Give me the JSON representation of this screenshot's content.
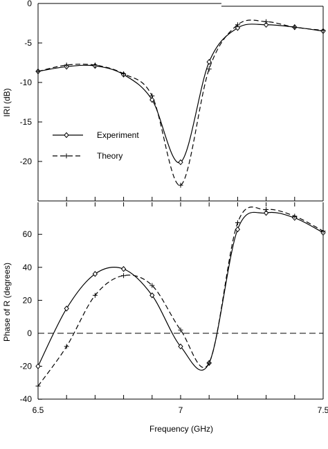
{
  "chart_data": [
    {
      "type": "line",
      "xlim": [
        6.5,
        7.5
      ],
      "ylim": [
        -25,
        0
      ],
      "yticks": [
        0,
        -5,
        -10,
        -15,
        -20
      ],
      "xticks": [
        6.5,
        6.6,
        6.7,
        6.8,
        6.9,
        7.0,
        7.1,
        7.2,
        7.3,
        7.4,
        7.5
      ],
      "xlabel": "",
      "ylabel": "IRI (dB)",
      "grid": false,
      "legend": "left",
      "series": [
        {
          "name": "Experiment",
          "style": "solid",
          "marker": "diamond",
          "x": [
            6.5,
            6.6,
            6.7,
            6.8,
            6.9,
            7.0,
            7.1,
            7.2,
            7.3,
            7.4,
            7.5
          ],
          "y": [
            -8.6,
            -8.0,
            -7.9,
            -9.0,
            -12.2,
            -20.1,
            -7.4,
            -3.1,
            -2.7,
            -3.0,
            -3.5
          ]
        },
        {
          "name": "Theory",
          "style": "dashed",
          "marker": "plus",
          "x": [
            6.5,
            6.6,
            6.7,
            6.8,
            6.9,
            7.0,
            7.1,
            7.2,
            7.3,
            7.4,
            7.5
          ],
          "y": [
            -8.6,
            -7.8,
            -7.8,
            -8.9,
            -11.7,
            -23.0,
            -8.3,
            -2.7,
            -2.3,
            -3.0,
            -3.4
          ]
        }
      ]
    },
    {
      "type": "line",
      "xlim": [
        6.5,
        7.5
      ],
      "ylim": [
        -40,
        80
      ],
      "yticks": [
        -40,
        -20,
        0,
        20,
        40,
        60
      ],
      "xticks": [
        6.5,
        6.6,
        6.7,
        6.8,
        6.9,
        7.0,
        7.1,
        7.2,
        7.3,
        7.4,
        7.5
      ],
      "xtick_labels": [
        "6.5",
        "",
        "",
        "",
        "",
        "7",
        "",
        "",
        "",
        "",
        "7.5"
      ],
      "xlabel": "Frequency (GHz)",
      "ylabel": "Phase of R (degrees)",
      "grid": false,
      "reference_line": 0,
      "series": [
        {
          "name": "Experiment",
          "style": "solid",
          "marker": "diamond",
          "x": [
            6.5,
            6.6,
            6.7,
            6.8,
            6.9,
            7.0,
            7.1,
            7.2,
            7.3,
            7.4,
            7.5
          ],
          "y": [
            -20,
            15,
            36,
            39,
            23,
            -8,
            -18,
            63,
            73,
            70,
            61
          ]
        },
        {
          "name": "Theory",
          "style": "dashed",
          "marker": "plus",
          "x": [
            6.5,
            6.6,
            6.7,
            6.8,
            6.9,
            7.0,
            7.1,
            7.2,
            7.3,
            7.4,
            7.5
          ],
          "y": [
            -32,
            -8,
            23,
            35,
            29,
            2,
            -18,
            67,
            75,
            71,
            62
          ]
        }
      ]
    }
  ]
}
